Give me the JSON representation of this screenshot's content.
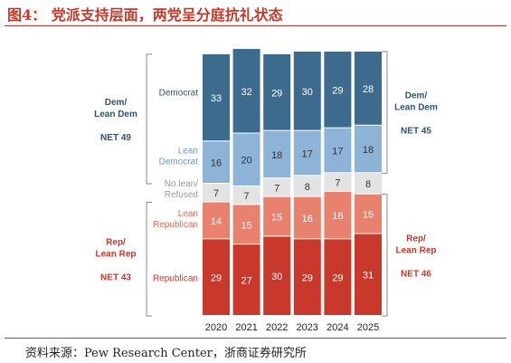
{
  "title": "图4： 党派支持层面，两党呈分庭抗礼状态",
  "source": "资料来源：Pew Research Center，浙商证券研究所",
  "chart_data": {
    "type": "bar",
    "stacked": true,
    "categories": [
      "2020",
      "2021",
      "2022",
      "2023",
      "2024",
      "2025"
    ],
    "series": [
      {
        "name": "Democrat",
        "values": [
          33,
          32,
          29,
          30,
          29,
          28
        ],
        "color": "#3d6b8e"
      },
      {
        "name": "Lean Democrat",
        "values": [
          16,
          20,
          18,
          17,
          17,
          18
        ],
        "color": "#8db3d6"
      },
      {
        "name": "No lean/ Refused",
        "values": [
          7,
          7,
          7,
          8,
          7,
          8
        ],
        "color": "#e3e3e3"
      },
      {
        "name": "Lean Republican",
        "values": [
          14,
          15,
          15,
          16,
          18,
          15
        ],
        "color": "#e8826f"
      },
      {
        "name": "Republican",
        "values": [
          29,
          27,
          30,
          29,
          29,
          31
        ],
        "color": "#c8382b"
      }
    ],
    "row_labels": [
      {
        "series": "Democrat",
        "lines": [
          "Democrat"
        ],
        "color": "#2f5270"
      },
      {
        "series": "Lean Democrat",
        "lines": [
          "Lean",
          "Democrat"
        ],
        "color": "#6f9ac4"
      },
      {
        "series": "No lean/ Refused",
        "lines": [
          "No lean/",
          "Refused"
        ],
        "color": "#999999"
      },
      {
        "series": "Lean Republican",
        "lines": [
          "Lean",
          "Republican"
        ],
        "color": "#e06a55"
      },
      {
        "series": "Republican",
        "lines": [
          "Republican"
        ],
        "color": "#c8382b"
      }
    ],
    "group_annotations": {
      "left": [
        {
          "group": "dem",
          "lines": [
            "Dem/",
            "Lean Dem"
          ],
          "net": "NET 49",
          "color": "#2f5270"
        },
        {
          "group": "rep",
          "lines": [
            "Rep/",
            "Lean Rep"
          ],
          "net": "NET 43",
          "color": "#c8382b"
        }
      ],
      "right": [
        {
          "group": "dem",
          "lines": [
            "Dem/",
            "Lean Dem"
          ],
          "net": "NET 45",
          "color": "#2f5270"
        },
        {
          "group": "rep",
          "lines": [
            "Rep/",
            "Lean Rep"
          ],
          "net": "NET 46",
          "color": "#c8382b"
        }
      ]
    }
  }
}
